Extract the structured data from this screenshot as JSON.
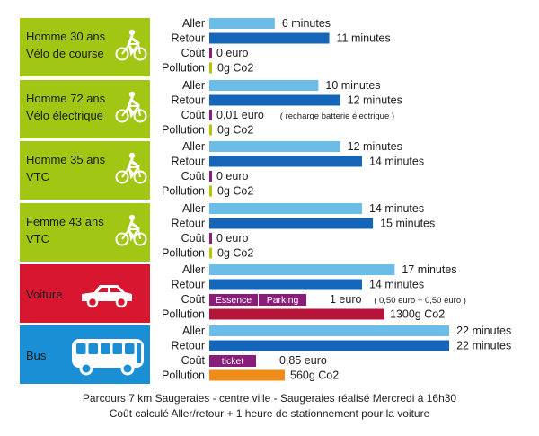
{
  "chart_data": {
    "type": "bar",
    "metrics": [
      "Aller",
      "Retour",
      "Coût",
      "Pollution"
    ],
    "x_unit": "minutes",
    "xlim": [
      0,
      22
    ],
    "colors": {
      "aller": "#6bbce6",
      "retour": "#1565b8",
      "cout": "#8a1d7a",
      "pollution_small": "#b8c400",
      "pollution_car": "#b5153a",
      "pollution_bus": "#f08c1a",
      "green_box": "#a2c614",
      "red_box": "#d9162f",
      "blue_box": "#1a8fd6"
    },
    "groups": [
      {
        "label_lines": [
          "Homme 30 ans",
          "Vélo de course"
        ],
        "icon": "bike-icon",
        "box_color": "#a2c614",
        "aller": 6,
        "aller_label": "6 minutes",
        "retour": 11,
        "retour_label": "11 minutes",
        "cout_label": "0 euro",
        "cout_segments": [],
        "pollution_label": "0g Co2",
        "pollution_value": 0,
        "pollution_color": "#b8c400"
      },
      {
        "label_lines": [
          "Homme 72 ans",
          "Vélo électrique"
        ],
        "icon": "bike-icon",
        "box_color": "#a2c614",
        "aller": 10,
        "aller_label": "10 minutes",
        "retour": 12,
        "retour_label": "12 minutes",
        "cout_label": "0,01 euro",
        "cout_note": "( recharge batterie électrique )",
        "cout_segments": [],
        "pollution_label": "0g Co2",
        "pollution_value": 0,
        "pollution_color": "#b8c400"
      },
      {
        "label_lines": [
          "Homme 35 ans",
          "VTC"
        ],
        "icon": "bike-icon",
        "box_color": "#a2c614",
        "aller": 12,
        "aller_label": "12 minutes",
        "retour": 14,
        "retour_label": "14 minutes",
        "cout_label": "0 euro",
        "cout_segments": [],
        "pollution_label": "0g Co2",
        "pollution_value": 0,
        "pollution_color": "#b8c400"
      },
      {
        "label_lines": [
          "Femme 43 ans",
          "VTC"
        ],
        "icon": "bike-icon",
        "box_color": "#a2c614",
        "aller": 14,
        "aller_label": "14 minutes",
        "retour": 15,
        "retour_label": "15 minutes",
        "cout_label": "0 euro",
        "cout_segments": [],
        "pollution_label": "0g Co2",
        "pollution_value": 0,
        "pollution_color": "#b8c400"
      },
      {
        "label_lines": [
          "Voiture"
        ],
        "icon": "car-icon",
        "box_color": "#d9162f",
        "aller": 17,
        "aller_label": "17 minutes",
        "retour": 14,
        "retour_label": "14 minutes",
        "cout_label": "1 euro",
        "cout_note": "( 0,50 euro + 0,50 euro )",
        "cout_segments": [
          "Essence",
          "Parking"
        ],
        "pollution_label": "1300g Co2",
        "pollution_value": 1300,
        "pollution_color": "#b5153a"
      },
      {
        "label_lines": [
          "Bus"
        ],
        "icon": "bus-icon",
        "box_color": "#1a8fd6",
        "aller": 22,
        "aller_label": "22 minutes",
        "retour": 22,
        "retour_label": "22 minutes",
        "cout_label": "0,85 euro",
        "cout_segments": [
          "ticket"
        ],
        "pollution_label": "560g Co2",
        "pollution_value": 560,
        "pollution_color": "#f08c1a"
      }
    ],
    "footer": [
      "Parcours 7 km Saugeraies - centre ville - Saugeraies réalisé Mercredi à 16h30",
      "Coût calculé Aller/retour + 1 heure de stationnement pour la voiture"
    ]
  }
}
